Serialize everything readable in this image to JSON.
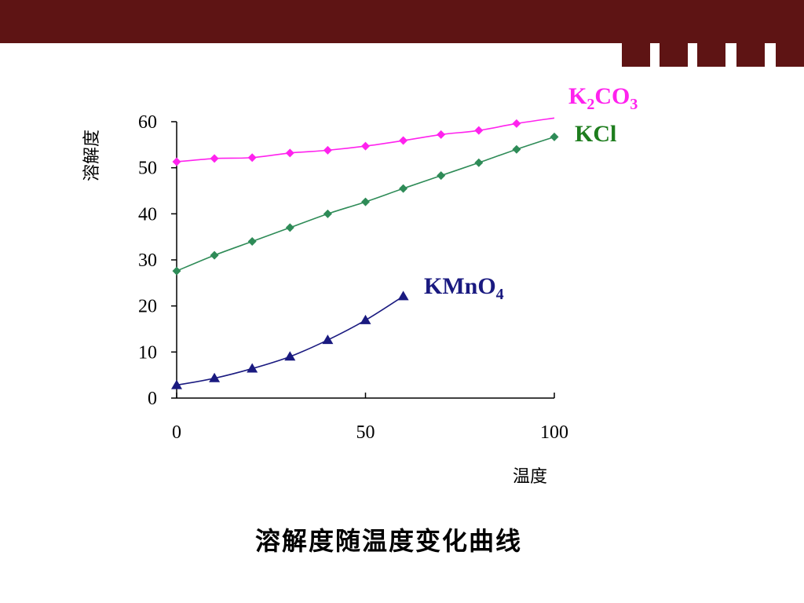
{
  "caption": "溶解度随温度变化曲线",
  "colors": {
    "band": "#5e1414",
    "K2CO3": "#ff22ee",
    "KCl": "#2e8b57",
    "KMnO4": "#1a1a80",
    "KCl_label": "#1e7d1e"
  },
  "chart_data": {
    "type": "line",
    "xlabel": "温度",
    "ylabel": "溶解度",
    "xlim": [
      0,
      100
    ],
    "ylim": [
      0,
      60
    ],
    "x_ticks": [
      0,
      50,
      100
    ],
    "y_ticks": [
      0,
      10,
      20,
      30,
      40,
      50,
      60
    ],
    "grid": false,
    "series": [
      {
        "name": "K2CO3",
        "label_base": "K",
        "label_sub1": "2",
        "label_mid": "CO",
        "label_sub2": "3",
        "marker": "diamond",
        "x": [
          0,
          10,
          20,
          30,
          40,
          50,
          60,
          70,
          80,
          90,
          100
        ],
        "values": [
          51.3,
          52.0,
          52.2,
          53.2,
          53.8,
          54.7,
          55.9,
          57.2,
          58.1,
          59.6,
          60.8
        ]
      },
      {
        "name": "KCl",
        "label_base": "KCl",
        "marker": "diamond",
        "x": [
          0,
          10,
          20,
          30,
          40,
          50,
          60,
          70,
          80,
          90,
          100
        ],
        "values": [
          27.6,
          31.0,
          34.0,
          37.0,
          40.0,
          42.6,
          45.5,
          48.3,
          51.1,
          54.0,
          56.7
        ]
      },
      {
        "name": "KMnO4",
        "label_base": "KMnO",
        "label_sub1": "4",
        "marker": "triangle",
        "x": [
          0,
          10,
          20,
          30,
          40,
          50,
          60
        ],
        "values": [
          2.8,
          4.3,
          6.4,
          9.0,
          12.6,
          16.9,
          22.1
        ]
      }
    ]
  }
}
